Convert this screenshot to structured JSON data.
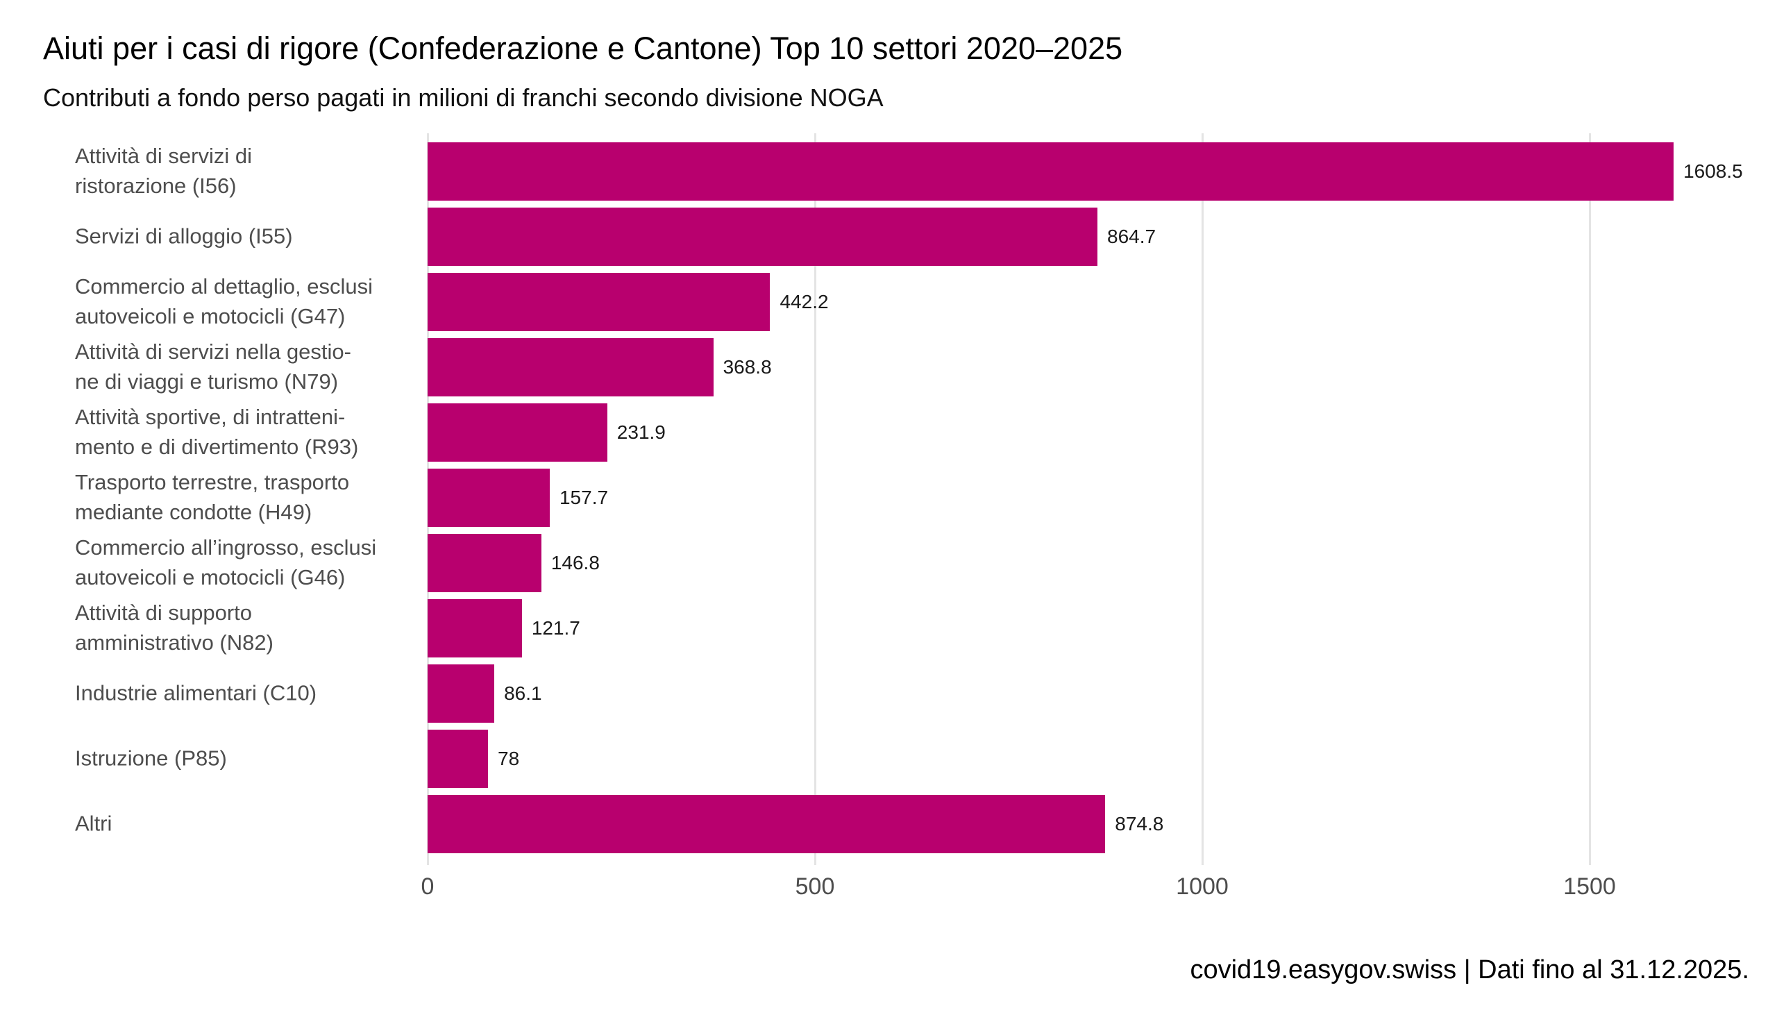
{
  "chart_data": {
    "type": "bar",
    "orientation": "horizontal",
    "title": "Aiuti per i casi di rigore (Confederazione e Cantone) Top 10 settori 2020–2025",
    "subtitle": "Contributi a fondo perso pagati in milioni di franchi secondo divisione NOGA",
    "unit": "milioni di franchi",
    "categories": [
      "Attività di servizi di ristorazione (I56)",
      "Servizi di alloggio (I55)",
      "Commercio al dettaglio, esclusi autoveicoli e motocicli (G47)",
      "Attività di servizi nella gestione di viaggi e turismo (N79)",
      "Attività sportive, di intrattenimento e di divertimento (R93)",
      "Trasporto terrestre, trasporto mediante condotte (H49)",
      "Commercio all’ingrosso, esclusi autoveicoli e motocicli (G46)",
      "Attività di supporto amministrativo (N82)",
      "Industrie alimentari (C10)",
      "Istruzione (P85)",
      "Altri"
    ],
    "category_display": [
      "Attività di servizi di\nristorazione (I56)",
      "Servizi di alloggio (I55)",
      "Commercio al dettaglio, esclusi\nautoveicoli e motocicli (G47)",
      "Attività di servizi nella gestio-\nne di viaggi e turismo (N79)",
      "Attività sportive, di intratteni-\nmento e di divertimento (R93)",
      "Trasporto terrestre, trasporto\nmediante condotte (H49)",
      "Commercio all’ingrosso, esclusi\nautoveicoli e motocicli (G46)",
      "Attività di supporto\namministrativo (N82)",
      "Industrie alimentari (C10)",
      "Istruzione (P85)",
      "Altri"
    ],
    "values": [
      1608.5,
      864.7,
      442.2,
      368.8,
      231.9,
      157.7,
      146.8,
      121.7,
      86.1,
      78,
      874.8
    ],
    "value_labels": [
      "1608.5",
      "864.7",
      "442.2",
      "368.8",
      "231.9",
      "157.7",
      "146.8",
      "121.7",
      "86.1",
      "78",
      "874.8"
    ],
    "x_ticks": [
      0,
      500,
      1000,
      1500
    ],
    "x_tick_labels": [
      "0",
      "500",
      "1000",
      "1500"
    ],
    "xlim": [
      0,
      1675
    ],
    "grid": true,
    "legend": false,
    "bar_color": "#b8006e",
    "label_color": "#4d4d4d",
    "value_color": "#1a1a1a",
    "grid_color": "#e4e4e4",
    "source": "covid19.easygov.swiss | Dati fino al 31.12.2025."
  }
}
